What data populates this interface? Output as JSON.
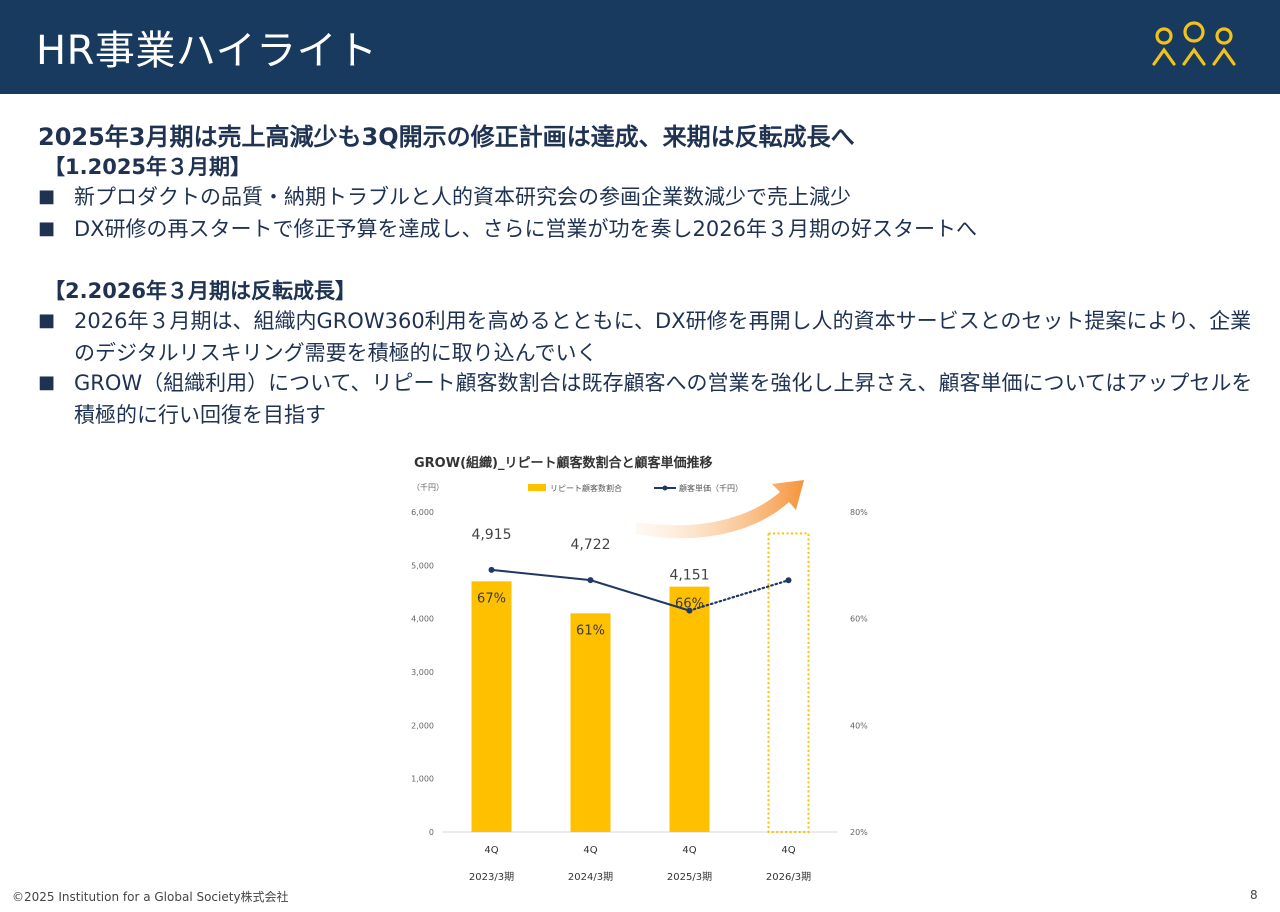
{
  "header": {
    "title": "HR事業ハイライト"
  },
  "headline": "2025年3月期は売上高減少も3Q開示の修正計画は達成、来期は反転成長へ",
  "sections": [
    {
      "title": "【1.2025年３月期】",
      "bullets": [
        "新プロダクトの品質・納期トラブルと人的資本研究会の参画企業数減少で売上減少",
        "DX研修の再スタートで修正予算を達成し、さらに営業が功を奏し2026年３月期の好スタートへ"
      ]
    },
    {
      "title": "【2.2026年３月期は反転成長】",
      "bullets": [
        "2026年３月期は、組織内GROW360利用を高めるとともに、DX研修を再開し人的資本サービスとのセット提案により、企業のデジタルリスキリング需要を積極的に取り込んでいく",
        "GROW（組織利用）について、リピート顧客数割合は既存顧客への営業を強化し上昇さえ、顧客単価についてはアップセルを積極的に行い回復を目指す"
      ]
    }
  ],
  "bullet_marker": "■",
  "chart_data": {
    "type": "bar",
    "title": "GROW(組織)_リピート顧客数割合と顧客単価推移",
    "left_unit": "（千円）",
    "categories": [
      "4Q",
      "4Q",
      "4Q",
      "4Q"
    ],
    "sublabels": [
      "2023/3期",
      "2024/3期",
      "2025/3期",
      "2026/3期"
    ],
    "left_ticks": [
      "0",
      "1,000",
      "2,000",
      "3,000",
      "4,000",
      "5,000",
      "6,000"
    ],
    "right_ticks": [
      "20%",
      "40%",
      "60%",
      "80%"
    ],
    "ylim_left": [
      0,
      6000
    ],
    "ylim_right": [
      20,
      80
    ],
    "series": [
      {
        "name": "リピート顧客数割合",
        "kind": "bar",
        "axis": "right",
        "values": [
          67,
          61,
          66,
          null
        ],
        "labels": [
          "67%",
          "61%",
          "66%",
          ""
        ],
        "projected_value": 76
      },
      {
        "name": "顧客単価（千円）",
        "kind": "line",
        "axis": "left",
        "values": [
          4915,
          4722,
          4151,
          4720
        ],
        "labels": [
          "4,915",
          "4,722",
          "4,151",
          ""
        ],
        "projected_from_index": 2
      }
    ],
    "colors": {
      "bar": "#FFC000",
      "line": "#1F3864",
      "arrow": "#F5943A",
      "grid": "#d9d9d9"
    }
  },
  "footer": {
    "copyright": "©2025  Institution for a Global Society株式会社",
    "page": "8"
  }
}
